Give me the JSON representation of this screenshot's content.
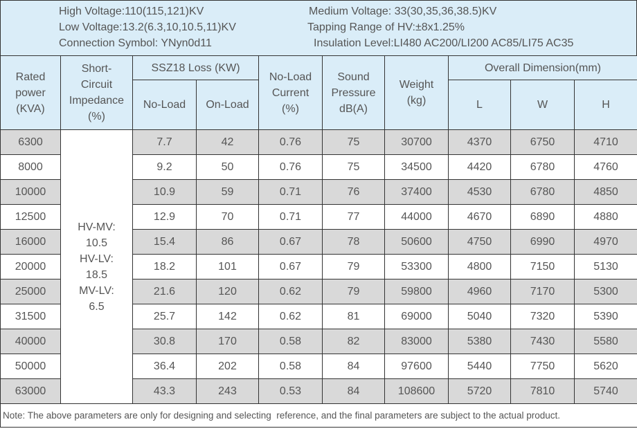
{
  "info": {
    "high_voltage": "High Voltage:110(115,121)KV",
    "low_voltage": "Low Voltage:13.2(6.3,10,10.5,11)KV",
    "connection": "Connection Symbol: YNyn0d11",
    "medium_voltage": "Medium Voltage: 33(30,35,36,38.5)KV",
    "tapping": "Tapping Range of HV:±8x1.25%",
    "insulation": "Insulation Level:LI480 AC200/LI200 AC85/LI75 AC35"
  },
  "table": {
    "headers": {
      "rated_power": [
        "Rated",
        "power",
        "(KVA)"
      ],
      "impedance": [
        "Short-",
        "Circuit",
        "Impedance",
        "(%)"
      ],
      "loss": "SSZ18 Loss (KW)",
      "no_load": "No-Load",
      "on_load": "On-Load",
      "current": [
        "No-Load",
        "Current",
        "(%)"
      ],
      "sound": [
        "Sound",
        "Pressure",
        "dB(A)"
      ],
      "weight": [
        "Weight",
        "(kg)"
      ],
      "dimension": "Overall Dimension(mm)",
      "l": "L",
      "w": "W",
      "h": "H"
    },
    "impedance_value": [
      "HV-MV:",
      "10.5",
      "HV-LV:",
      "18.5",
      "MV-LV:",
      "6.5"
    ],
    "rows": [
      [
        6300,
        7.7,
        42,
        0.76,
        75,
        30700,
        4370,
        6750,
        4710
      ],
      [
        8000,
        9.2,
        50,
        0.76,
        75,
        34500,
        4420,
        6780,
        4760
      ],
      [
        10000,
        10.9,
        59,
        0.71,
        76,
        37400,
        4530,
        6780,
        4850
      ],
      [
        12500,
        12.9,
        70,
        0.71,
        77,
        44000,
        4670,
        6890,
        4880
      ],
      [
        16000,
        15.4,
        86,
        0.67,
        78,
        50600,
        4750,
        6990,
        4970
      ],
      [
        20000,
        18.2,
        101,
        0.67,
        79,
        53300,
        4800,
        7150,
        5130
      ],
      [
        25000,
        21.6,
        120,
        0.62,
        79,
        59800,
        4960,
        7170,
        5300
      ],
      [
        31500,
        25.7,
        142,
        0.62,
        81,
        69000,
        5040,
        7320,
        5390
      ],
      [
        40000,
        30.8,
        170,
        0.58,
        82,
        83000,
        5380,
        7430,
        5580
      ],
      [
        50000,
        36.4,
        202,
        0.58,
        84,
        97600,
        5440,
        7750,
        5620
      ],
      [
        63000,
        43.3,
        243,
        0.53,
        84,
        108600,
        5720,
        7810,
        5740
      ]
    ],
    "note": "Note: The above parameters are only for designing and selecting  reference, and the final parameters are subject to the actual product."
  }
}
